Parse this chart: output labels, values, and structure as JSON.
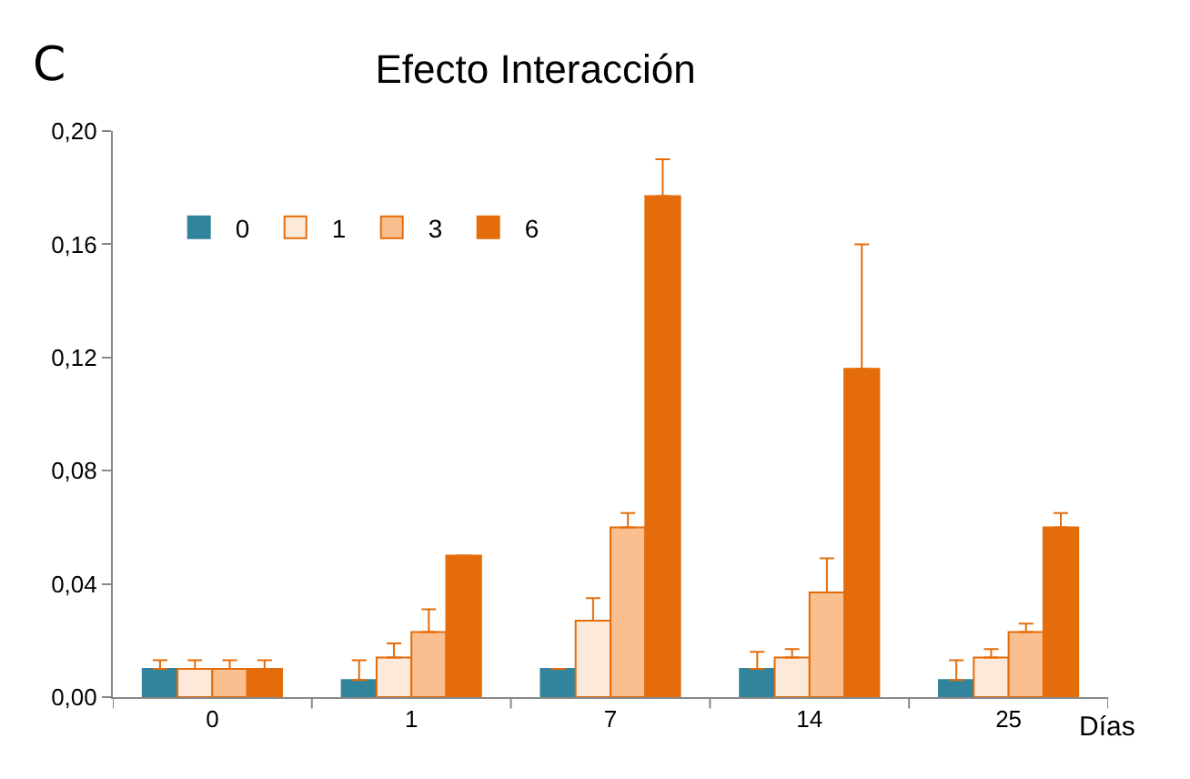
{
  "chart_data": {
    "type": "bar",
    "title": "Efecto Interacción",
    "xlabel": "Días",
    "annotations": [
      "C"
    ],
    "categories": [
      "0",
      "1",
      "7",
      "14",
      "25"
    ],
    "series": [
      {
        "name": "0",
        "color": "#31849b",
        "values": [
          0.01,
          0.006,
          0.01,
          0.01,
          0.006
        ],
        "errors": [
          [
            0.01,
            0.013
          ],
          [
            0.006,
            0.013
          ],
          [
            0.01,
            0.01
          ],
          [
            0.01,
            0.016
          ],
          [
            0.006,
            0.013
          ]
        ]
      },
      {
        "name": "1",
        "color": "#fde9d9",
        "values": [
          0.01,
          0.014,
          0.027,
          0.014,
          0.014
        ],
        "errors": [
          [
            0.01,
            0.013
          ],
          [
            0.014,
            0.019
          ],
          [
            0.027,
            0.035
          ],
          [
            0.014,
            0.017
          ],
          [
            0.014,
            0.017
          ]
        ]
      },
      {
        "name": "3",
        "color": "#fabf8f",
        "values": [
          0.01,
          0.023,
          0.06,
          0.037,
          0.023
        ],
        "errors": [
          [
            0.01,
            0.013
          ],
          [
            0.023,
            0.031
          ],
          [
            0.06,
            0.065
          ],
          [
            0.037,
            0.049
          ],
          [
            0.023,
            0.026
          ]
        ]
      },
      {
        "name": "6",
        "color": "#e46c0a",
        "values": [
          0.01,
          0.05,
          0.177,
          0.116,
          0.06
        ],
        "errors": [
          [
            0.01,
            0.013
          ],
          [
            0.05,
            0.05
          ],
          [
            0.177,
            0.19
          ],
          [
            0.116,
            0.16
          ],
          [
            0.06,
            0.065
          ]
        ]
      }
    ],
    "ylim": [
      0,
      0.2
    ],
    "yticks": [
      {
        "value": 0,
        "label": "0,00"
      },
      {
        "value": 0.04,
        "label": "0,04"
      },
      {
        "value": 0.08,
        "label": "0,08"
      },
      {
        "value": 0.12,
        "label": "0,12"
      },
      {
        "value": 0.16,
        "label": "0,16"
      },
      {
        "value": 0.2,
        "label": "0,20"
      }
    ],
    "legend": "top left"
  }
}
